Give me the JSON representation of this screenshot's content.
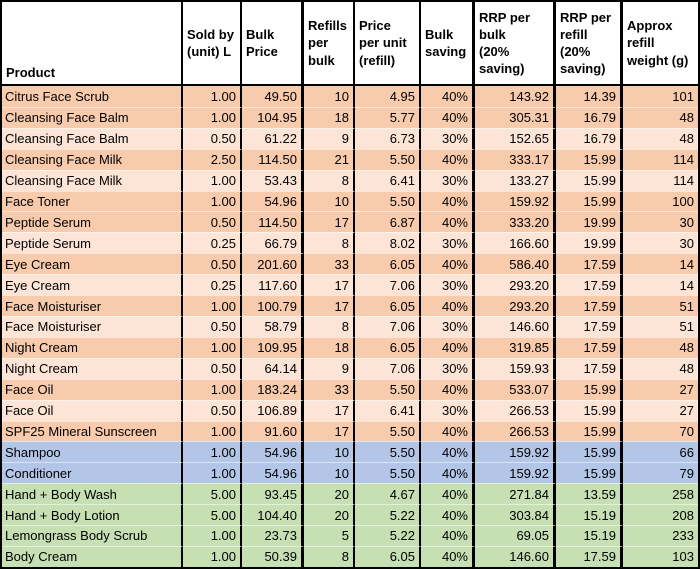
{
  "table": {
    "columns": [
      {
        "key": "product",
        "label": "Product"
      },
      {
        "key": "sold_by",
        "label": "Sold by\n(unit) L"
      },
      {
        "key": "bulk_price",
        "label": "Bulk\nPrice"
      },
      {
        "key": "refills",
        "label": "Refills\nper\nbulk"
      },
      {
        "key": "price_per_unit",
        "label": "Price\nper unit\n(refill)"
      },
      {
        "key": "bulk_saving",
        "label": "Bulk\nsaving"
      },
      {
        "key": "rrp_bulk",
        "label": "RRP per\nbulk\n(20%\nsaving)"
      },
      {
        "key": "rrp_refill",
        "label": "RRP per\nrefill\n(20%\nsaving)"
      },
      {
        "key": "weight",
        "label": "Approx\nrefill\nweight (g)"
      }
    ],
    "rows": [
      {
        "product": "Citrus Face Scrub",
        "sold_by": "1.00",
        "bulk_price": "49.50",
        "refills": "10",
        "price_per_unit": "4.95",
        "bulk_saving": "40%",
        "rrp_bulk": "143.92",
        "rrp_refill": "14.39",
        "weight": "101",
        "shade": "face_dark"
      },
      {
        "product": "Cleansing Face Balm",
        "sold_by": "1.00",
        "bulk_price": "104.95",
        "refills": "18",
        "price_per_unit": "5.77",
        "bulk_saving": "40%",
        "rrp_bulk": "305.31",
        "rrp_refill": "16.79",
        "weight": "48",
        "shade": "face_dark"
      },
      {
        "product": "Cleansing Face Balm",
        "sold_by": "0.50",
        "bulk_price": "61.22",
        "refills": "9",
        "price_per_unit": "6.73",
        "bulk_saving": "30%",
        "rrp_bulk": "152.65",
        "rrp_refill": "16.79",
        "weight": "48",
        "shade": "face_light"
      },
      {
        "product": "Cleansing Face Milk",
        "sold_by": "2.50",
        "bulk_price": "114.50",
        "refills": "21",
        "price_per_unit": "5.50",
        "bulk_saving": "40%",
        "rrp_bulk": "333.17",
        "rrp_refill": "15.99",
        "weight": "114",
        "shade": "face_dark"
      },
      {
        "product": "Cleansing Face Milk",
        "sold_by": "1.00",
        "bulk_price": "53.43",
        "refills": "8",
        "price_per_unit": "6.41",
        "bulk_saving": "30%",
        "rrp_bulk": "133.27",
        "rrp_refill": "15.99",
        "weight": "114",
        "shade": "face_light"
      },
      {
        "product": "Face Toner",
        "sold_by": "1.00",
        "bulk_price": "54.96",
        "refills": "10",
        "price_per_unit": "5.50",
        "bulk_saving": "40%",
        "rrp_bulk": "159.92",
        "rrp_refill": "15.99",
        "weight": "100",
        "shade": "face_dark"
      },
      {
        "product": "Peptide Serum",
        "sold_by": "0.50",
        "bulk_price": "114.50",
        "refills": "17",
        "price_per_unit": "6.87",
        "bulk_saving": "40%",
        "rrp_bulk": "333.20",
        "rrp_refill": "19.99",
        "weight": "30",
        "shade": "face_dark"
      },
      {
        "product": "Peptide Serum",
        "sold_by": "0.25",
        "bulk_price": "66.79",
        "refills": "8",
        "price_per_unit": "8.02",
        "bulk_saving": "30%",
        "rrp_bulk": "166.60",
        "rrp_refill": "19.99",
        "weight": "30",
        "shade": "face_light"
      },
      {
        "product": "Eye Cream",
        "sold_by": "0.50",
        "bulk_price": "201.60",
        "refills": "33",
        "price_per_unit": "6.05",
        "bulk_saving": "40%",
        "rrp_bulk": "586.40",
        "rrp_refill": "17.59",
        "weight": "14",
        "shade": "face_dark"
      },
      {
        "product": "Eye Cream",
        "sold_by": "0.25",
        "bulk_price": "117.60",
        "refills": "17",
        "price_per_unit": "7.06",
        "bulk_saving": "30%",
        "rrp_bulk": "293.20",
        "rrp_refill": "17.59",
        "weight": "14",
        "shade": "face_light"
      },
      {
        "product": "Face Moisturiser",
        "sold_by": "1.00",
        "bulk_price": "100.79",
        "refills": "17",
        "price_per_unit": "6.05",
        "bulk_saving": "40%",
        "rrp_bulk": "293.20",
        "rrp_refill": "17.59",
        "weight": "51",
        "shade": "face_dark"
      },
      {
        "product": "Face Moisturiser",
        "sold_by": "0.50",
        "bulk_price": "58.79",
        "refills": "8",
        "price_per_unit": "7.06",
        "bulk_saving": "30%",
        "rrp_bulk": "146.60",
        "rrp_refill": "17.59",
        "weight": "51",
        "shade": "face_light"
      },
      {
        "product": "Night Cream",
        "sold_by": "1.00",
        "bulk_price": "109.95",
        "refills": "18",
        "price_per_unit": "6.05",
        "bulk_saving": "40%",
        "rrp_bulk": "319.85",
        "rrp_refill": "17.59",
        "weight": "48",
        "shade": "face_dark"
      },
      {
        "product": "Night Cream",
        "sold_by": "0.50",
        "bulk_price": "64.14",
        "refills": "9",
        "price_per_unit": "7.06",
        "bulk_saving": "30%",
        "rrp_bulk": "159.93",
        "rrp_refill": "17.59",
        "weight": "48",
        "shade": "face_light"
      },
      {
        "product": "Face Oil",
        "sold_by": "1.00",
        "bulk_price": "183.24",
        "refills": "33",
        "price_per_unit": "5.50",
        "bulk_saving": "40%",
        "rrp_bulk": "533.07",
        "rrp_refill": "15.99",
        "weight": "27",
        "shade": "face_dark"
      },
      {
        "product": "Face Oil",
        "sold_by": "0.50",
        "bulk_price": "106.89",
        "refills": "17",
        "price_per_unit": "6.41",
        "bulk_saving": "30%",
        "rrp_bulk": "266.53",
        "rrp_refill": "15.99",
        "weight": "27",
        "shade": "face_light"
      },
      {
        "product": "SPF25 Mineral Sunscreen",
        "sold_by": "1.00",
        "bulk_price": "91.60",
        "refills": "17",
        "price_per_unit": "5.50",
        "bulk_saving": "40%",
        "rrp_bulk": "266.53",
        "rrp_refill": "15.99",
        "weight": "70",
        "shade": "face_dark"
      },
      {
        "product": "Shampoo",
        "sold_by": "1.00",
        "bulk_price": "54.96",
        "refills": "10",
        "price_per_unit": "5.50",
        "bulk_saving": "40%",
        "rrp_bulk": "159.92",
        "rrp_refill": "15.99",
        "weight": "66",
        "shade": "hair"
      },
      {
        "product": "Conditioner",
        "sold_by": "1.00",
        "bulk_price": "54.96",
        "refills": "10",
        "price_per_unit": "5.50",
        "bulk_saving": "40%",
        "rrp_bulk": "159.92",
        "rrp_refill": "15.99",
        "weight": "79",
        "shade": "hair"
      },
      {
        "product": "Hand + Body Wash",
        "sold_by": "5.00",
        "bulk_price": "93.45",
        "refills": "20",
        "price_per_unit": "4.67",
        "bulk_saving": "40%",
        "rrp_bulk": "271.84",
        "rrp_refill": "13.59",
        "weight": "258",
        "shade": "body"
      },
      {
        "product": "Hand + Body Lotion",
        "sold_by": "5.00",
        "bulk_price": "104.40",
        "refills": "20",
        "price_per_unit": "5.22",
        "bulk_saving": "40%",
        "rrp_bulk": "303.84",
        "rrp_refill": "15.19",
        "weight": "208",
        "shade": "body"
      },
      {
        "product": "Lemongrass Body Scrub",
        "sold_by": "1.00",
        "bulk_price": "23.73",
        "refills": "5",
        "price_per_unit": "5.22",
        "bulk_saving": "40%",
        "rrp_bulk": "69.05",
        "rrp_refill": "15.19",
        "weight": "233",
        "shade": "body"
      },
      {
        "product": "Body Cream",
        "sold_by": "1.00",
        "bulk_price": "50.39",
        "refills": "8",
        "price_per_unit": "6.05",
        "bulk_saving": "40%",
        "rrp_bulk": "146.60",
        "rrp_refill": "17.59",
        "weight": "103",
        "shade": "body"
      }
    ]
  },
  "colors": {
    "face_dark": "#F8CBAD",
    "face_light": "#FCE4D6",
    "hair": "#B4C6E7",
    "body": "#C6E0B4",
    "border": "#000000",
    "header_bg": "#FFFFFF",
    "text": "#000000"
  }
}
